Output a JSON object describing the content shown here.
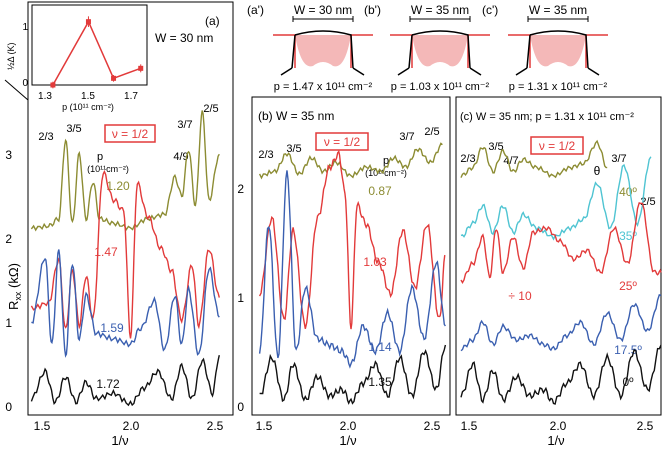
{
  "figure": {
    "ylabel": "R",
    "ylabel_sub": "xx",
    "ylabel_unit": "(kΩ)",
    "xlabel": "1/ν",
    "x_ticks": [
      "1.5",
      "2.0",
      "2.5"
    ],
    "y_ticks_a": [
      "0",
      "1",
      "2",
      "3"
    ],
    "y_ticks_bc": [
      "0",
      "1",
      "2"
    ]
  },
  "inset": {
    "ylabel": "½Δ (K)",
    "xlabel": "p (10¹¹ cm⁻²)",
    "x_ticks": [
      "1.3",
      "1.5",
      "1.7"
    ],
    "y_ticks": [
      "0",
      "1"
    ]
  },
  "panel_a": {
    "tag": "(a)",
    "subtitle": "W = 30 nm",
    "p_header": "p",
    "p_unit": "(10¹¹cm⁻²)",
    "nu_box": "ν = 1/2",
    "fractions": [
      "2/3",
      "3/5",
      "4/9",
      "3/7",
      "2/5"
    ],
    "trace_labels": [
      "1.20",
      "1.47",
      "1.59",
      "1.72"
    ]
  },
  "panel_b": {
    "title": "(b) W = 35 nm",
    "p_header": "p",
    "p_unit": "(10¹¹cm⁻²)",
    "nu_box": "ν = 1/2",
    "fractions": [
      "2/3",
      "3/5",
      "3/7",
      "2/5"
    ],
    "trace_labels": [
      "0.87",
      "1.03",
      "1.14",
      "1.35"
    ]
  },
  "panel_c": {
    "title": "(c) W = 35 nm; p = 1.31 x 10¹¹ cm⁻²",
    "theta": "θ",
    "nu_box": "ν = 1/2",
    "fractions": [
      "2/3",
      "3/5",
      "4/7",
      "3/7",
      "2/5"
    ],
    "trace_labels": [
      "40º",
      "35º",
      "25º",
      "17.5º",
      "0º"
    ],
    "divide_label": "÷ 10"
  },
  "schematics": [
    {
      "tag": "(a')",
      "width": "W = 30 nm",
      "density": "p = 1.47 x 10¹¹ cm⁻²"
    },
    {
      "tag": "(b')",
      "width": "W = 35 nm",
      "density": "p = 1.03 x 10¹¹ cm⁻²"
    },
    {
      "tag": "(c')",
      "width": "W = 35 nm",
      "density": "p = 1.31 x 10¹¹ cm⁻²"
    }
  ],
  "colors": {
    "olive": "#8c8c33",
    "red": "#e23a3a",
    "blue": "#3a5fb0",
    "black": "#111111",
    "cyan": "#4fc4d2",
    "well_fill": "#f4b8b8"
  },
  "chart_data": [
    {
      "type": "line",
      "panel": "a",
      "xlabel": "1/ν",
      "ylabel": "Rxx (kΩ)",
      "xlim": [
        1.4,
        2.6
      ],
      "ylim": [
        -0.1,
        3.7
      ],
      "series": [
        {
          "name": "1.20",
          "color": "olive",
          "offset": 1.62,
          "scale": 0.85,
          "x": [
            1.42,
            1.52,
            1.58,
            1.62,
            1.66,
            1.7,
            1.74,
            1.78,
            1.82,
            1.9,
            2.0,
            2.1,
            2.2,
            2.26,
            2.3,
            2.34,
            2.38,
            2.42,
            2.46,
            2.52
          ],
          "y": [
            0.0,
            0.02,
            0.1,
            0.95,
            0.05,
            0.8,
            0.1,
            0.5,
            0.1,
            0.05,
            0.0,
            0.1,
            0.15,
            0.55,
            0.35,
            0.85,
            0.25,
            1.25,
            0.3,
            0.8
          ]
        },
        {
          "name": "1.47",
          "color": "red",
          "offset": 0.68,
          "scale": 1.0,
          "x": [
            1.42,
            1.52,
            1.58,
            1.62,
            1.66,
            1.7,
            1.74,
            1.78,
            1.84,
            1.9,
            1.96,
            2.0,
            2.04,
            2.1,
            2.18,
            2.24,
            2.3,
            2.36,
            2.4,
            2.46,
            2.52
          ],
          "y": [
            0.2,
            0.25,
            0.65,
            0.0,
            0.55,
            0.05,
            0.5,
            0.1,
            1.45,
            1.2,
            1.1,
            -0.05,
            1.35,
            1.05,
            0.75,
            0.55,
            0.1,
            0.6,
            0.05,
            0.75,
            0.3
          ]
        },
        {
          "name": "1.59",
          "color": "blue",
          "offset": 0.45,
          "scale": 1.0,
          "x": [
            1.42,
            1.5,
            1.54,
            1.58,
            1.62,
            1.66,
            1.7,
            1.74,
            1.8,
            1.9,
            2.0,
            2.06,
            2.14,
            2.2,
            2.26,
            2.3,
            2.34,
            2.4,
            2.46,
            2.52
          ],
          "y": [
            0.3,
            0.9,
            0.1,
            0.95,
            0.0,
            0.85,
            0.15,
            0.55,
            0.2,
            0.15,
            0.1,
            0.25,
            0.5,
            0.05,
            0.55,
            0.1,
            0.6,
            0.0,
            0.8,
            0.35
          ]
        },
        {
          "name": "1.72",
          "color": "black",
          "offset": 0.0,
          "scale": 1.0,
          "x": [
            1.42,
            1.5,
            1.56,
            1.62,
            1.68,
            1.74,
            1.8,
            1.9,
            2.0,
            2.08,
            2.16,
            2.24,
            2.3,
            2.36,
            2.42,
            2.48,
            2.52
          ],
          "y": [
            0.05,
            0.3,
            0.02,
            0.25,
            0.02,
            0.2,
            0.05,
            0.1,
            0.0,
            0.15,
            0.3,
            0.05,
            0.35,
            0.05,
            0.4,
            0.1,
            0.45
          ]
        }
      ]
    },
    {
      "type": "line",
      "panel": "b",
      "xlabel": "1/ν",
      "ylabel": "Rxx (kΩ)",
      "xlim": [
        1.35,
        2.65
      ],
      "ylim": [
        -0.1,
        2.4
      ],
      "series": [
        {
          "name": "0.87",
          "color": "olive",
          "offset": 1.78,
          "scale": 0.7,
          "x": [
            1.4,
            1.5,
            1.58,
            1.66,
            1.74,
            1.82,
            1.9,
            2.0,
            2.1,
            2.2,
            2.28,
            2.36,
            2.44,
            2.52,
            2.6
          ],
          "y": [
            0.0,
            0.05,
            0.25,
            0.02,
            0.2,
            0.05,
            0.15,
            0.0,
            0.1,
            0.05,
            0.2,
            0.1,
            0.3,
            0.15,
            0.35
          ]
        },
        {
          "name": "1.03",
          "color": "red",
          "offset": 0.55,
          "scale": 1.0,
          "x": [
            1.4,
            1.48,
            1.56,
            1.62,
            1.7,
            1.78,
            1.86,
            1.92,
            1.96,
            2.0,
            2.04,
            2.1,
            2.18,
            2.26,
            2.34,
            2.42,
            2.5,
            2.58,
            2.62
          ],
          "y": [
            0.3,
            0.9,
            0.1,
            0.8,
            0.05,
            0.9,
            1.3,
            1.4,
            1.1,
            0.05,
            1.0,
            0.85,
            0.55,
            0.3,
            0.8,
            0.35,
            0.85,
            0.1,
            0.6
          ]
        },
        {
          "name": "1.14",
          "color": "blue",
          "offset": 0.3,
          "scale": 1.0,
          "x": [
            1.4,
            1.46,
            1.52,
            1.58,
            1.64,
            1.7,
            1.78,
            1.86,
            1.94,
            2.0,
            2.08,
            2.16,
            2.24,
            2.32,
            2.4,
            2.48,
            2.56,
            2.62
          ],
          "y": [
            0.1,
            1.1,
            0.05,
            1.5,
            0.1,
            0.6,
            0.2,
            0.15,
            0.1,
            0.0,
            0.3,
            0.1,
            0.4,
            0.1,
            0.6,
            0.2,
            0.8,
            0.3
          ]
        },
        {
          "name": "1.35",
          "color": "black",
          "offset": 0.0,
          "scale": 1.0,
          "x": [
            1.4,
            1.48,
            1.56,
            1.62,
            1.7,
            1.78,
            1.86,
            1.94,
            2.0,
            2.08,
            2.16,
            2.24,
            2.32,
            2.4,
            2.48,
            2.56,
            2.62
          ],
          "y": [
            0.05,
            0.35,
            0.02,
            0.3,
            0.02,
            0.2,
            0.05,
            0.1,
            0.0,
            0.15,
            0.3,
            0.05,
            0.35,
            0.05,
            0.4,
            0.1,
            0.45
          ]
        }
      ]
    },
    {
      "type": "line",
      "panel": "c",
      "xlabel": "1/ν",
      "ylabel": "Rxx (kΩ)",
      "xlim": [
        1.42,
        2.64
      ],
      "ylim": [
        -0.1,
        2.4
      ],
      "series": [
        {
          "name": "40º",
          "color": "olive",
          "offset": 1.78,
          "scale": 0.65,
          "x": [
            1.45,
            1.52,
            1.58,
            1.64,
            1.7,
            1.76,
            1.82,
            1.9,
            2.0,
            2.1,
            2.18,
            2.26,
            2.32
          ],
          "y": [
            0.0,
            0.1,
            0.35,
            0.05,
            0.3,
            0.05,
            0.2,
            0.1,
            0.0,
            0.1,
            0.15,
            0.4,
            0.1
          ]
        },
        {
          "name": "35º",
          "color": "cyan",
          "offset": 1.3,
          "scale": 0.7,
          "x": [
            1.45,
            1.52,
            1.58,
            1.64,
            1.7,
            1.76,
            1.82,
            1.9,
            2.0,
            2.1,
            2.18,
            2.26,
            2.34,
            2.42,
            2.5,
            2.58
          ],
          "y": [
            0.0,
            0.15,
            0.35,
            0.05,
            0.35,
            0.05,
            0.25,
            0.1,
            0.0,
            0.1,
            0.2,
            0.6,
            0.1,
            0.8,
            0.15,
            0.9
          ]
        },
        {
          "name": "25º",
          "color": "red",
          "offset": 0.95,
          "scale": 0.7,
          "x": [
            1.45,
            1.52,
            1.58,
            1.62,
            1.66,
            1.7,
            1.76,
            1.82,
            1.88,
            1.96,
            2.04,
            2.12,
            2.2,
            2.28,
            2.36,
            2.44,
            2.52,
            2.6,
            2.64
          ],
          "y": [
            0.0,
            0.2,
            0.5,
            0.05,
            0.6,
            0.1,
            0.5,
            0.15,
            0.55,
            0.6,
            0.45,
            0.25,
            0.35,
            0.1,
            0.6,
            0.2,
            0.9,
            0.1,
            0.1
          ]
        },
        {
          "name": "17.5º",
          "color": "blue",
          "offset": 0.42,
          "scale": 0.7,
          "x": [
            1.45,
            1.52,
            1.58,
            1.64,
            1.7,
            1.78,
            1.86,
            1.94,
            2.0,
            2.08,
            2.16,
            2.24,
            2.32,
            2.4,
            2.48,
            2.56,
            2.64
          ],
          "y": [
            0.0,
            0.1,
            0.3,
            0.05,
            0.25,
            0.1,
            0.15,
            0.05,
            0.0,
            0.15,
            0.3,
            0.05,
            0.4,
            0.1,
            0.5,
            0.2,
            0.6
          ]
        },
        {
          "name": "0º",
          "color": "black",
          "offset": 0.0,
          "scale": 1.0,
          "x": [
            1.45,
            1.52,
            1.58,
            1.64,
            1.7,
            1.78,
            1.86,
            1.94,
            2.0,
            2.08,
            2.16,
            2.24,
            2.32,
            2.4,
            2.48,
            2.56,
            2.64
          ],
          "y": [
            0.05,
            0.3,
            0.02,
            0.25,
            0.02,
            0.2,
            0.05,
            0.1,
            0.0,
            0.15,
            0.3,
            0.05,
            0.35,
            0.05,
            0.4,
            0.1,
            0.45
          ]
        }
      ]
    },
    {
      "type": "line",
      "panel": "inset",
      "xlabel": "p (10¹¹ cm⁻²)",
      "ylabel": "½Δ (K)",
      "xlim": [
        1.2,
        1.75
      ],
      "ylim": [
        0,
        1.2
      ],
      "series": [
        {
          "color": "red",
          "x": [
            1.3,
            1.47,
            1.59,
            1.72
          ],
          "y": [
            0.0,
            0.95,
            0.1,
            0.25
          ],
          "err": [
            0.05,
            0.08,
            0.05,
            0.06
          ]
        }
      ]
    }
  ]
}
